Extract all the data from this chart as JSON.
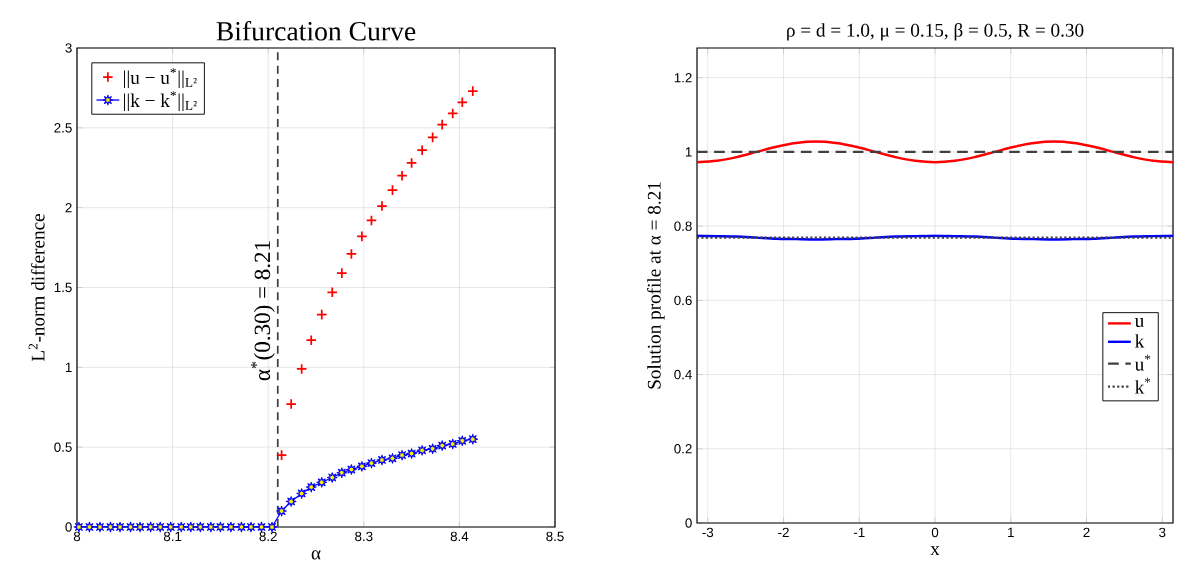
{
  "chart_data": [
    {
      "type": "scatter",
      "title": "Bifurcation Curve",
      "xlabel": "α",
      "ylabel": "L$^{2}$-norm difference",
      "xlim": [
        8,
        8.5
      ],
      "xticks": [
        8,
        8.1,
        8.2,
        8.3,
        8.4,
        8.5
      ],
      "ylim": [
        0,
        3
      ],
      "yticks": [
        0,
        0.5,
        1,
        1.5,
        2,
        2.5,
        3
      ],
      "grid": true,
      "legend": "top left",
      "series": [
        {
          "name": "||u − u$^{*}$||$_{L²}$",
          "marker": "cross",
          "color": "#ff0000",
          "x": [
            8.214,
            8.224,
            8.235,
            8.245,
            8.256,
            8.267,
            8.277,
            8.287,
            8.298,
            8.308,
            8.319,
            8.33,
            8.34,
            8.35,
            8.361,
            8.372,
            8.382,
            8.393,
            8.403,
            8.414
          ],
          "values": [
            0.45,
            0.77,
            0.99,
            1.17,
            1.33,
            1.47,
            1.59,
            1.71,
            1.82,
            1.92,
            2.01,
            2.11,
            2.2,
            2.28,
            2.36,
            2.44,
            2.52,
            2.59,
            2.66,
            2.73
          ]
        },
        {
          "name": "||k − k$^{*}$||$_{L²}$",
          "type": "line",
          "marker": "star",
          "color": "#0000ff",
          "x": [
            8.002,
            8.013,
            8.024,
            8.035,
            8.045,
            8.056,
            8.066,
            8.077,
            8.087,
            8.098,
            8.109,
            8.119,
            8.129,
            8.14,
            8.15,
            8.161,
            8.172,
            8.182,
            8.193,
            8.204,
            8.214,
            8.224,
            8.235,
            8.245,
            8.256,
            8.267,
            8.277,
            8.287,
            8.298,
            8.308,
            8.319,
            8.33,
            8.34,
            8.35,
            8.361,
            8.372,
            8.382,
            8.393,
            8.403,
            8.414
          ],
          "values": [
            0,
            0,
            0,
            0,
            0,
            0,
            0,
            0,
            0,
            0,
            0,
            0,
            0,
            0,
            0,
            0,
            0,
            0,
            0,
            0,
            0.1,
            0.16,
            0.21,
            0.25,
            0.28,
            0.31,
            0.34,
            0.36,
            0.38,
            0.4,
            0.42,
            0.43,
            0.45,
            0.46,
            0.48,
            0.49,
            0.51,
            0.52,
            0.54,
            0.55
          ]
        }
      ],
      "ref_lines": [
        {
          "axis": "x",
          "value": 8.21,
          "label": "α$^{*}$(0.30) = 8.21",
          "color": "#404040",
          "line_style": "dashed"
        }
      ]
    },
    {
      "type": "line",
      "title": "ρ = d = 1.0, μ = 0.15, β = 0.5, R = 0.30",
      "xlabel": "x",
      "ylabel": "Solution profile at α = 8.21",
      "xlim": [
        -3.142,
        3.142
      ],
      "xticks": [
        -3,
        -2,
        -1,
        0,
        1,
        2,
        3
      ],
      "ylim": [
        0,
        1.28
      ],
      "yticks": [
        0,
        0.2,
        0.4,
        0.6,
        0.8,
        1,
        1.2
      ],
      "grid": true,
      "legend": "right",
      "series": [
        {
          "name": "u",
          "color": "#ff0000",
          "x": [
            -3.142,
            -2.88,
            -2.618,
            -2.356,
            -2.094,
            -1.833,
            -1.571,
            -1.309,
            -1.047,
            -0.785,
            -0.524,
            -0.262,
            0,
            0.262,
            0.524,
            0.785,
            1.047,
            1.309,
            1.571,
            1.833,
            2.094,
            2.356,
            2.618,
            2.88,
            3.142
          ],
          "values": [
            0.972,
            0.976,
            0.986,
            1.0,
            1.014,
            1.024,
            1.028,
            1.024,
            1.014,
            1.0,
            0.986,
            0.976,
            0.972,
            0.976,
            0.986,
            1.0,
            1.014,
            1.024,
            1.028,
            1.024,
            1.014,
            1.0,
            0.986,
            0.976,
            0.972
          ]
        },
        {
          "name": "k",
          "color": "#0000ff",
          "x": [
            -3.142,
            -2.88,
            -2.618,
            -2.356,
            -2.094,
            -1.833,
            -1.571,
            -1.309,
            -1.047,
            -0.785,
            -0.524,
            -0.262,
            0,
            0.262,
            0.524,
            0.785,
            1.047,
            1.309,
            1.571,
            1.833,
            2.094,
            2.356,
            2.618,
            2.88,
            3.142
          ],
          "values": [
            0.774,
            0.773,
            0.772,
            0.769,
            0.766,
            0.765,
            0.764,
            0.765,
            0.766,
            0.769,
            0.772,
            0.773,
            0.774,
            0.773,
            0.772,
            0.769,
            0.766,
            0.765,
            0.764,
            0.765,
            0.766,
            0.769,
            0.772,
            0.773,
            0.774
          ]
        },
        {
          "name": "u$^{*}$",
          "color": "#404040",
          "line_style": "dashed",
          "x": [
            -3.142,
            3.142
          ],
          "values": [
            1.0,
            1.0
          ]
        },
        {
          "name": "k$^{*}$",
          "color": "#404040",
          "line_style": "dotted",
          "x": [
            -3.142,
            3.142
          ],
          "values": [
            0.769,
            0.769
          ]
        }
      ]
    }
  ]
}
